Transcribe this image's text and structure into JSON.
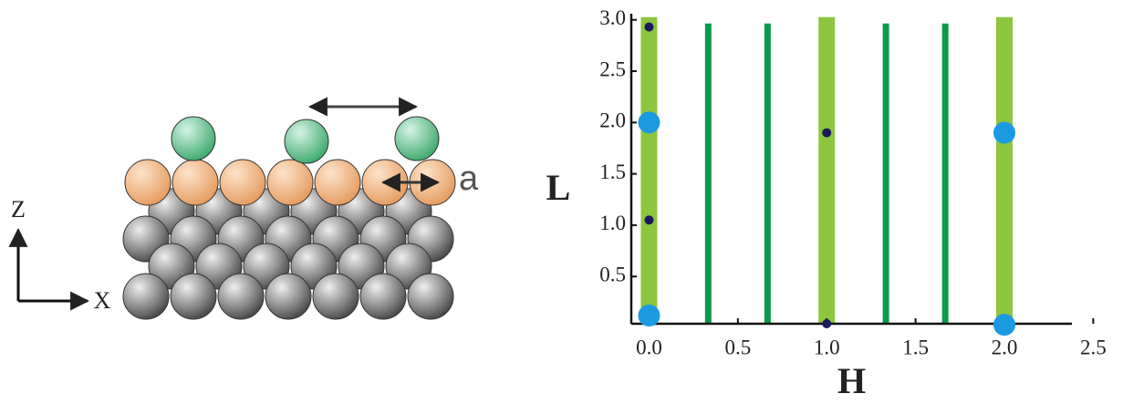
{
  "diagram": {
    "z_label": "Z",
    "x_label": "X",
    "spacing_label": "a"
  },
  "chart_data": {
    "type": "scatter",
    "x_label": "H",
    "y_label": "L",
    "xlim": [
      -0.1,
      2.38
    ],
    "ylim": [
      0.04,
      3.06
    ],
    "xticks": [
      {
        "value": 0,
        "label": "0.0"
      },
      0.5,
      {
        "value": 1,
        "label": "1.0"
      },
      1.5,
      {
        "value": 2,
        "label": "2.0"
      },
      2.5
    ],
    "yticks": [
      0.5,
      {
        "value": 1,
        "label": "1.0"
      },
      1.5,
      {
        "value": 2,
        "label": "2.0"
      },
      2.5,
      {
        "value": 3,
        "label": "3.0"
      }
    ],
    "rods": [
      {
        "color": "#8cc63f",
        "x": [
          0,
          1,
          2
        ]
      },
      {
        "color": "#0a9a4a",
        "x": [
          0.333,
          0.667,
          1.333,
          1.667
        ]
      }
    ],
    "series": [
      {
        "color": "#1a9ae0",
        "x": [
          0,
          0,
          2,
          2
        ],
        "values": [
          2.0,
          0.12,
          1.9,
          0.03
        ]
      },
      {
        "color": "#1c1a5e",
        "x": [
          0,
          0,
          1,
          1
        ],
        "values": [
          2.93,
          1.05,
          1.9,
          0.04
        ]
      }
    ]
  }
}
